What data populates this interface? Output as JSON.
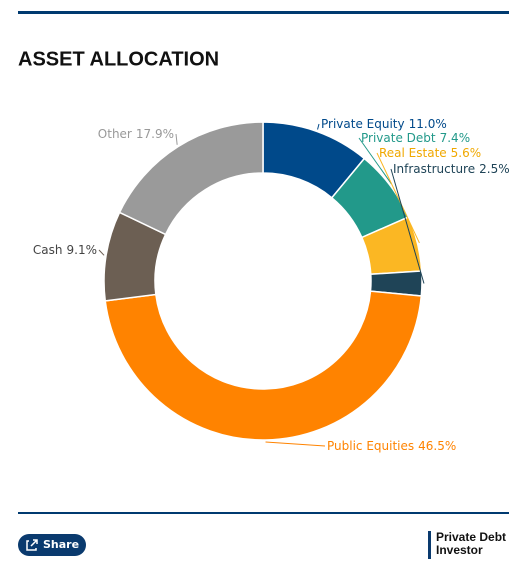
{
  "chart_data": {
    "type": "donut",
    "title": "ASSET ALLOCATION",
    "categories": [
      "Private Equity",
      "Private Debt",
      "Real Estate",
      "Infrastructure",
      "Public Equities",
      "Cash",
      "Other"
    ],
    "values": [
      11.0,
      7.4,
      5.6,
      2.5,
      46.5,
      9.1,
      17.9
    ],
    "value_labels": [
      "11.0%",
      "7.4%",
      "5.6%",
      "2.5%",
      "46.5%",
      "9.1%",
      "17.9%"
    ],
    "colors": [
      "#00498a",
      "#22998a",
      "#fbb723",
      "#1f4457",
      "#ff8300",
      "#6c5f53",
      "#9a9a9a"
    ]
  },
  "share_button": "Share",
  "logo": [
    "Private Debt",
    "Investor"
  ]
}
